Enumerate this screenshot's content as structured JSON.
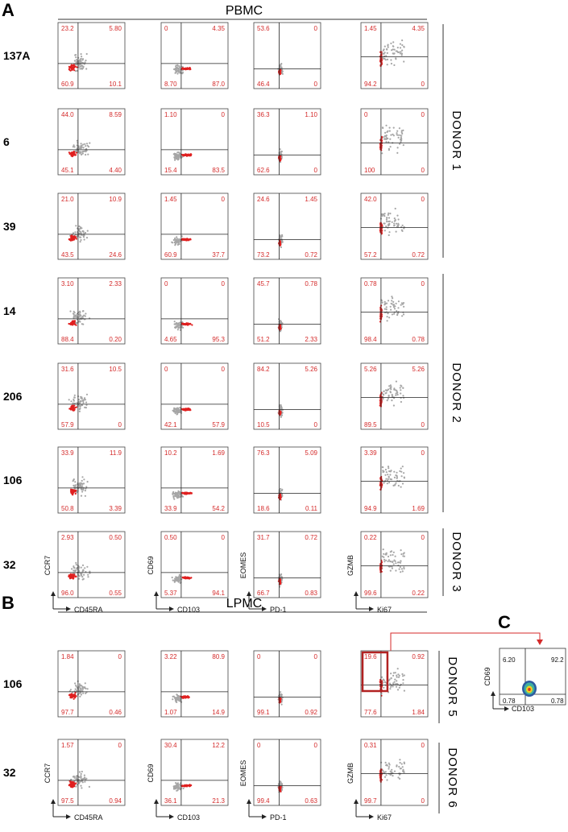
{
  "panels": {
    "a": "A",
    "b": "B",
    "c": "C"
  },
  "pbmc": {
    "title": "PBMC",
    "rows": [
      {
        "label": "137A",
        "quads": [
          [
            "23.2",
            "5.80",
            "60.9",
            "10.1"
          ],
          [
            "0",
            "4.35",
            "8.70",
            "87.0"
          ],
          [
            "53.6",
            "0",
            "46.4",
            "0"
          ],
          [
            "1.45",
            "4.35",
            "94.2",
            "0"
          ]
        ]
      },
      {
        "label": "6",
        "quads": [
          [
            "44.0",
            "8.59",
            "45.1",
            "4.40"
          ],
          [
            "1.10",
            "0",
            "15.4",
            "83.5"
          ],
          [
            "36.3",
            "1.10",
            "62.6",
            "0"
          ],
          [
            "0",
            "0",
            "100",
            "0"
          ]
        ]
      },
      {
        "label": "39",
        "quads": [
          [
            "21.0",
            "10.9",
            "43.5",
            "24.6"
          ],
          [
            "1.45",
            "0",
            "60.9",
            "37.7"
          ],
          [
            "24.6",
            "1.45",
            "73.2",
            "0.72"
          ],
          [
            "42.0",
            "0",
            "57.2",
            "0.72"
          ]
        ]
      },
      {
        "label": "14",
        "quads": [
          [
            "3.10",
            "2.33",
            "88.4",
            "0.20"
          ],
          [
            "0",
            "0",
            "4.65",
            "95.3"
          ],
          [
            "45.7",
            "0.78",
            "51.2",
            "2.33"
          ],
          [
            "0.78",
            "0",
            "98.4",
            "0.78"
          ]
        ]
      },
      {
        "label": "206",
        "quads": [
          [
            "31.6",
            "10.5",
            "57.9",
            "0"
          ],
          [
            "0",
            "0",
            "42.1",
            "57.9"
          ],
          [
            "84.2",
            "5.26",
            "10.5",
            "0"
          ],
          [
            "5.26",
            "5.26",
            "89.5",
            "0"
          ]
        ]
      },
      {
        "label": "106",
        "quads": [
          [
            "33.9",
            "11.9",
            "50.8",
            "3.39"
          ],
          [
            "10.2",
            "1.69",
            "33.9",
            "54.2"
          ],
          [
            "76.3",
            "5.09",
            "18.6",
            "0.11"
          ],
          [
            "3.39",
            "0",
            "94.9",
            "1.69"
          ]
        ]
      },
      {
        "label": "32",
        "quads": [
          [
            "2.93",
            "0.50",
            "96.0",
            "0.55"
          ],
          [
            "0.50",
            "0",
            "5.37",
            "94.1"
          ],
          [
            "31.7",
            "0.72",
            "66.7",
            "0.83"
          ],
          [
            "0.22",
            "0",
            "99.6",
            "0.22"
          ]
        ]
      }
    ],
    "donors": [
      "DONOR 1",
      "DONOR 2",
      "DONOR 3"
    ]
  },
  "lpmc": {
    "title": "LPMC",
    "rows": [
      {
        "label": "106",
        "quads": [
          [
            "1.84",
            "0",
            "97.7",
            "0.46"
          ],
          [
            "3.22",
            "80.9",
            "1.07",
            "14.9"
          ],
          [
            "0",
            "0",
            "99.1",
            "0.92"
          ],
          [
            "19.6",
            "0.92",
            "77.6",
            "1.84"
          ]
        ]
      },
      {
        "label": "32",
        "quads": [
          [
            "1.57",
            "0",
            "97.5",
            "0.94"
          ],
          [
            "30.4",
            "12.2",
            "36.1",
            "21.3"
          ],
          [
            "0",
            "0",
            "99.4",
            "0.63"
          ],
          [
            "0.31",
            "0",
            "99.7",
            "0"
          ]
        ]
      }
    ],
    "donors": [
      "DONOR 5",
      "DONOR 6"
    ]
  },
  "axes": {
    "y": [
      "CCR7",
      "CD69",
      "EOMES",
      "GZMB"
    ],
    "x": [
      "CD45RA",
      "CD103",
      "PD-1",
      "Ki67"
    ]
  },
  "panel_c": {
    "quads": [
      "6.20",
      "92.2",
      "0.78",
      "0.78"
    ],
    "ylabel": "CD69",
    "xlabel": "CD103"
  },
  "colors": {
    "gray_dots": "#a6a6a6",
    "red_dots": "#e02020",
    "quadrant_text": "#d42a2a",
    "highlight_box": "#b22222",
    "axis": "#222222"
  }
}
